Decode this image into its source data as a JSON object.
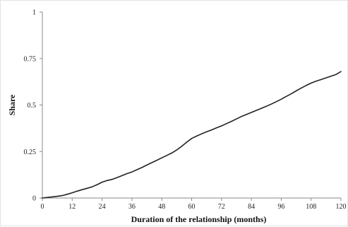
{
  "chart_data": {
    "type": "line",
    "title": "",
    "xlabel": "Duration of the relationship (months)",
    "ylabel": "Share",
    "xlim": [
      0,
      120
    ],
    "ylim": [
      0,
      1
    ],
    "x_ticks": [
      0,
      12,
      24,
      36,
      48,
      60,
      72,
      84,
      96,
      108,
      120
    ],
    "y_ticks": [
      0,
      0.25,
      0.5,
      0.75,
      1
    ],
    "y_tick_labels": [
      "0",
      "0.25",
      "0.5",
      "0.75",
      "1"
    ],
    "grid": false,
    "line_color": "#222222",
    "series": [
      {
        "x": [
          0,
          2,
          4,
          6,
          8,
          10,
          12,
          14,
          16,
          18,
          20,
          22,
          24,
          26,
          28,
          30,
          32,
          34,
          36,
          38,
          40,
          42,
          44,
          46,
          48,
          50,
          52,
          54,
          56,
          58,
          60,
          62,
          64,
          66,
          68,
          70,
          72,
          74,
          76,
          78,
          80,
          82,
          84,
          86,
          88,
          90,
          92,
          94,
          96,
          98,
          100,
          102,
          104,
          106,
          108,
          110,
          112,
          114,
          116,
          118,
          120
        ],
        "y": [
          0.0,
          0.003,
          0.006,
          0.009,
          0.013,
          0.02,
          0.028,
          0.037,
          0.045,
          0.052,
          0.06,
          0.072,
          0.085,
          0.094,
          0.1,
          0.11,
          0.12,
          0.131,
          0.14,
          0.152,
          0.164,
          0.177,
          0.19,
          0.203,
          0.216,
          0.229,
          0.242,
          0.258,
          0.278,
          0.3,
          0.32,
          0.333,
          0.345,
          0.356,
          0.366,
          0.377,
          0.388,
          0.4,
          0.412,
          0.425,
          0.438,
          0.449,
          0.46,
          0.471,
          0.482,
          0.493,
          0.505,
          0.518,
          0.531,
          0.546,
          0.56,
          0.576,
          0.591,
          0.605,
          0.618,
          0.628,
          0.637,
          0.646,
          0.655,
          0.664,
          0.68
        ]
      }
    ]
  }
}
